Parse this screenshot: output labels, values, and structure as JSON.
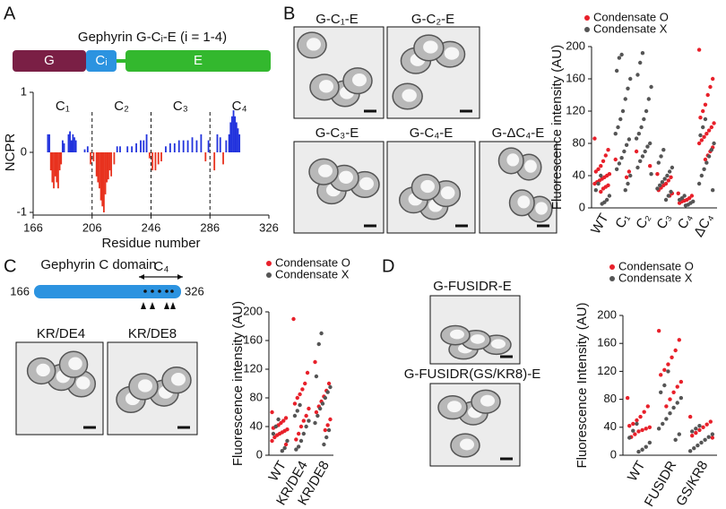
{
  "labels": {
    "a": "A",
    "b": "B",
    "c": "C",
    "d": "D"
  },
  "panel_a": {
    "title": "Gephyrin G-Cᵢ-E (i = 1-4)",
    "domains": [
      "G",
      "Cᵢ",
      "E"
    ]
  },
  "panel_b": {
    "images": [
      "G-C₁-E",
      "G-C₂-E",
      "G-C₃-E",
      "G-C₄-E",
      "G-ΔC₄-E"
    ]
  },
  "panel_c": {
    "title": "Gephyrin C domain",
    "start": 166,
    "end": 326,
    "region": "C₄",
    "images": [
      "KR/DE4",
      "KR/DE8"
    ]
  },
  "panel_d": {
    "images": [
      "G-FUSIDR-E",
      "G-FUSIDR(GS/KR8)-E"
    ]
  },
  "chart_data": [
    {
      "type": "bar",
      "ylabel": "NCPR",
      "xlabel": "Residue number",
      "xlim": [
        166,
        326
      ],
      "ylim": [
        -1,
        1
      ],
      "xticks": [
        166,
        206,
        246,
        286,
        326
      ],
      "yticks": [
        -1,
        0,
        1
      ],
      "region_labels": [
        "C₁",
        "C₂",
        "C₃",
        "C₄"
      ],
      "dividers": [
        206,
        246,
        286
      ],
      "positive_color": "#2233dd",
      "negative_color": "#e8321e",
      "x": [
        176,
        177,
        178,
        179,
        180,
        181,
        182,
        183,
        184,
        185,
        186,
        187,
        190,
        191,
        192,
        193,
        194,
        195,
        201,
        203,
        205,
        207,
        209,
        210,
        211,
        212,
        213,
        214,
        215,
        216,
        217,
        218,
        219,
        221,
        223,
        225,
        230,
        233,
        236,
        239,
        241,
        243,
        245,
        247,
        249,
        251,
        253,
        256,
        259,
        262,
        265,
        268,
        271,
        274,
        277,
        280,
        283,
        285,
        289,
        291,
        293,
        295,
        297,
        299,
        300,
        301,
        302,
        303,
        304,
        305,
        306
      ],
      "values": [
        0.3,
        0.3,
        -0.3,
        -0.5,
        -0.6,
        -0.4,
        -0.5,
        -0.6,
        -0.3,
        -0.2,
        0.2,
        0.15,
        0.3,
        0.35,
        0.2,
        0.3,
        0.25,
        0.2,
        0.05,
        0.1,
        -0.2,
        -0.15,
        -0.4,
        -0.5,
        -0.6,
        -0.8,
        -0.9,
        -1,
        -0.7,
        -0.5,
        -0.45,
        -0.3,
        -0.4,
        -0.2,
        0.1,
        0.1,
        0.1,
        0.1,
        0.15,
        0.2,
        0.2,
        0.3,
        -0.1,
        -0.3,
        -0.3,
        -0.2,
        -0.15,
        0.1,
        0.15,
        0.15,
        0.2,
        0.2,
        0.2,
        0.25,
        0.2,
        0.3,
        -0.15,
        0.2,
        -0.3,
        0.3,
        0.25,
        -0.2,
        0.2,
        0.3,
        0.5,
        0.6,
        0.7,
        0.6,
        0.5,
        0.4,
        0.3
      ]
    },
    {
      "type": "strip",
      "ylabel": "Fluorescence intensity (AU)",
      "ylim": [
        0,
        200
      ],
      "yticks": [
        0,
        40,
        80,
        120,
        160,
        200
      ],
      "categories": [
        "WT",
        "C₁",
        "C₂",
        "C₃",
        "C₄",
        "ΔC₄"
      ],
      "legend": "top-left",
      "series": [
        {
          "name": "Condensate O",
          "color": "#e8202a",
          "values": [
            [
              86,
              72,
              65,
              58,
              52,
              48,
              45,
              42,
              40,
              38,
              36,
              34,
              32,
              30,
              28,
              26,
              24,
              20
            ],
            [
              60,
              45,
              38
            ],
            [
              70,
              52
            ],
            [
              42,
              38,
              34,
              30,
              28,
              25,
              22,
              18,
              15
            ],
            [
              18,
              15,
              12,
              10,
              9,
              8,
              6
            ],
            [
              196,
              160,
              150,
              140,
              128,
              120,
              112,
              105,
              100,
              96,
              92,
              88,
              84,
              80,
              75,
              70,
              65,
              60
            ]
          ]
        },
        {
          "name": "Condensate X",
          "color": "#555555",
          "values": [
            [
              40,
              30,
              22,
              15,
              10,
              7,
              5
            ],
            [
              190,
              186,
              170,
              160,
              148,
              135,
              120,
              110,
              100,
              92,
              85,
              78,
              70,
              62,
              55,
              48,
              40,
              30,
              22
            ],
            [
              192,
              180,
              165,
              150,
              135,
              120,
              110,
              100,
              92,
              86,
              80,
              76,
              70,
              64,
              58,
              50,
              42
            ],
            [
              72,
              64,
              56,
              50,
              45,
              40,
              36,
              32,
              28,
              24,
              20,
              15,
              10
            ],
            [
              15,
              12,
              10,
              8,
              6,
              4,
              3
            ],
            [
              110,
              100,
              90,
              80,
              72,
              64,
              56,
              48,
              40,
              30,
              22
            ]
          ]
        }
      ]
    },
    {
      "type": "strip",
      "ylabel": "Fluorescence intensity (AU)",
      "ylim": [
        0,
        200
      ],
      "yticks": [
        0,
        40,
        80,
        120,
        160,
        200
      ],
      "categories": [
        "WT",
        "KR/DE4",
        "KR/DE8"
      ],
      "legend": "top-left",
      "series": [
        {
          "name": "Condensate O",
          "color": "#e8202a",
          "values": [
            [
              60,
              52,
              48,
              45,
              42,
              40,
              38,
              36,
              34,
              32,
              30,
              28,
              25,
              20,
              15
            ],
            [
              190,
              115,
              100,
              92,
              85,
              80,
              72,
              65,
              55,
              48,
              40,
              30,
              22
            ],
            [
              130,
              100,
              90,
              82,
              75,
              68,
              60,
              50,
              42,
              35
            ]
          ]
        },
        {
          "name": "Condensate X",
          "color": "#555555",
          "values": [
            [
              50,
              40,
              30,
              20,
              10,
              6
            ],
            [
              70,
              62,
              55,
              48,
              40,
              30,
              20,
              12,
              8
            ],
            [
              170,
              155,
              110,
              95,
              88,
              80,
              72,
              65,
              55,
              45,
              35,
              25,
              15
            ]
          ]
        }
      ]
    },
    {
      "type": "strip",
      "ylabel": "Fluorescence Intensity (AU)",
      "ylim": [
        0,
        200
      ],
      "yticks": [
        0,
        40,
        80,
        120,
        160,
        200
      ],
      "categories": [
        "WT",
        "FUSIDR",
        "GS/KR8"
      ],
      "legend": "top-left",
      "series": [
        {
          "name": "Condensate O",
          "color": "#e8202a",
          "values": [
            [
              82,
              70,
              62,
              55,
              50,
              45,
              42,
              40,
              38,
              36,
              34,
              30,
              26
            ],
            [
              178,
              165,
              150,
              140,
              130,
              122,
              115,
              105,
              98,
              90,
              80,
              70
            ],
            [
              55,
              48,
              44,
              40,
              36,
              32,
              28,
              25
            ]
          ]
        },
        {
          "name": "Condensate X",
          "color": "#555555",
          "values": [
            [
              45,
              35,
              25,
              18,
              12,
              8,
              5
            ],
            [
              120,
              100,
              90,
              82,
              75,
              68,
              60,
              52,
              45,
              38,
              30,
              22
            ],
            [
              42,
              38,
              34,
              30,
              26,
              22,
              18,
              14,
              10,
              6
            ]
          ]
        }
      ]
    }
  ]
}
